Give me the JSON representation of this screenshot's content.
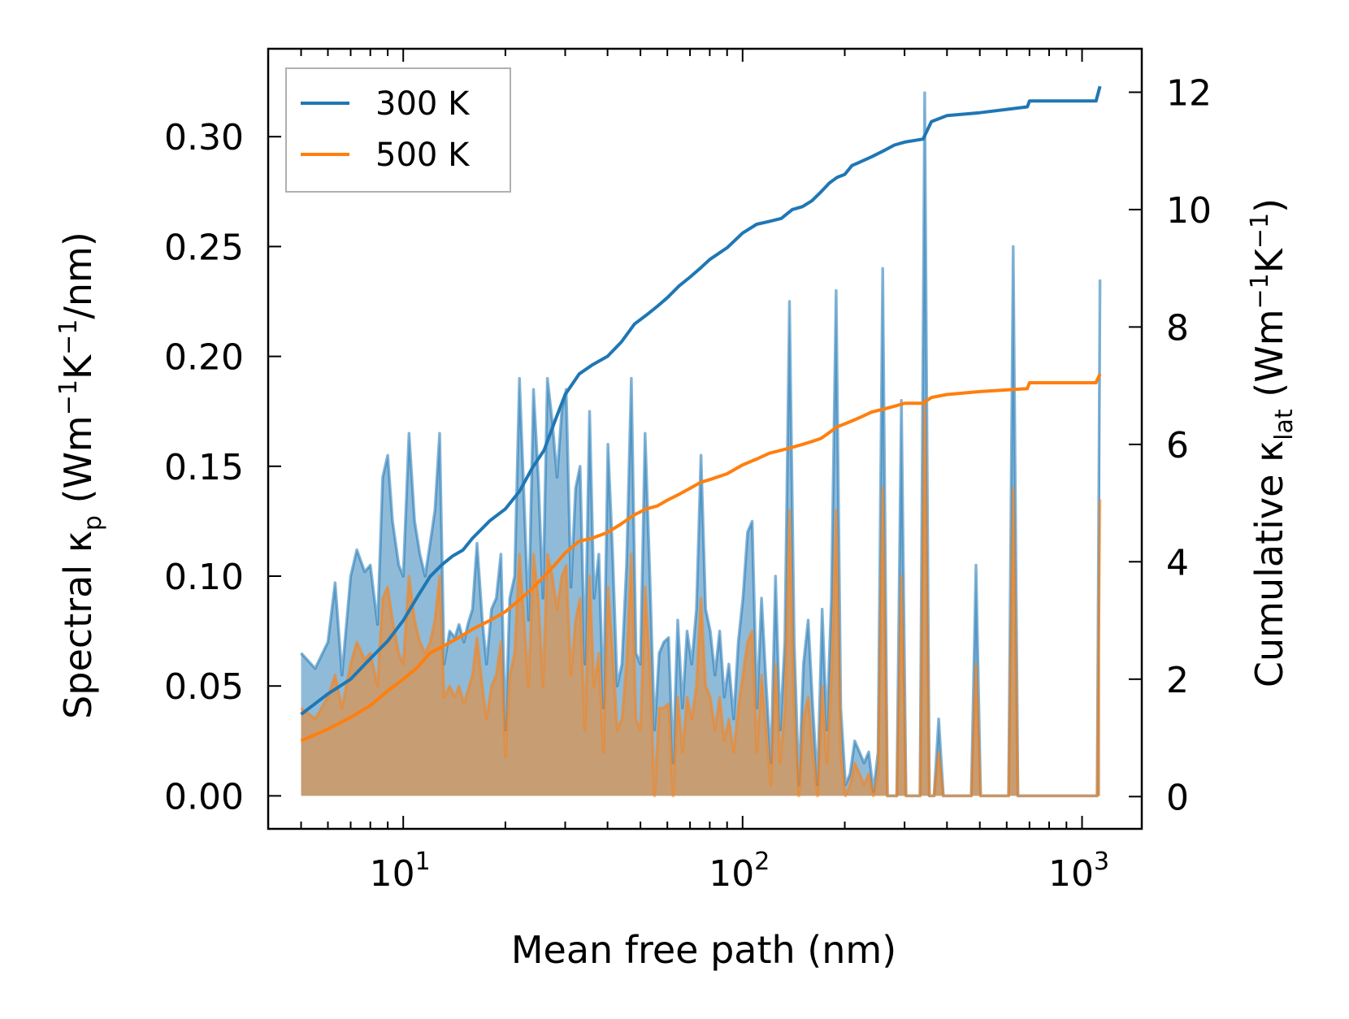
{
  "chart_data": {
    "type": "line",
    "x_scale": "log",
    "xlabel": "Mean free path (nm)",
    "ylabel_left": {
      "main": "Spectral κ",
      "sub": "p",
      "unit_pre": " (Wm",
      "sup1": "−1",
      "unit_mid": "K",
      "sup2": "−1",
      "unit_post": "/nm)"
    },
    "ylabel_right": {
      "main": "Cumulative κ",
      "sub": "lat",
      "unit_pre": " (Wm",
      "sup1": "−1",
      "unit_mid": "K",
      "sup2": "−1",
      "unit_post": ")"
    },
    "xlim": [
      4.0,
      1500.0
    ],
    "ylim_left": [
      -0.015,
      0.34
    ],
    "ylim_right": [
      -0.55,
      12.74
    ],
    "x_ticks": [
      {
        "value": 10,
        "base": "10",
        "exp": "1"
      },
      {
        "value": 100,
        "base": "10",
        "exp": "2"
      },
      {
        "value": 1000,
        "base": "10",
        "exp": "3"
      }
    ],
    "y_ticks_left": [
      "0.00",
      "0.05",
      "0.10",
      "0.15",
      "0.20",
      "0.25",
      "0.30"
    ],
    "y_ticks_right": [
      "0",
      "2",
      "4",
      "6",
      "8",
      "10",
      "12"
    ],
    "legend": {
      "position": "top-left",
      "entries": [
        {
          "label": "300 K",
          "color": "#1f77b4"
        },
        {
          "label": "500 K",
          "color": "#ff7f0e"
        }
      ]
    },
    "series": [
      {
        "name": "300 K",
        "color": "#1f77b4",
        "spectral": {
          "x": [
            5.0,
            5.5,
            6.0,
            6.3,
            6.6,
            7.0,
            7.3,
            7.7,
            8.0,
            8.4,
            8.7,
            9.0,
            9.3,
            9.7,
            10.0,
            10.4,
            10.8,
            11.2,
            11.6,
            12.0,
            12.4,
            12.8,
            13.2,
            13.7,
            14.2,
            14.6,
            15.1,
            15.5,
            16.0,
            16.5,
            17.1,
            17.6,
            18.2,
            18.8,
            19.4,
            20.0,
            20.6,
            21.3,
            22.0,
            22.7,
            23.4,
            24.2,
            25.0,
            25.8,
            26.6,
            27.5,
            28.4,
            29.3,
            30.2,
            31.2,
            32.2,
            33.2,
            34.3,
            35.4,
            36.5,
            37.7,
            38.9,
            40.1,
            41.4,
            42.7,
            44.1,
            45.5,
            47.0,
            48.5,
            50.0,
            51.6,
            53.3,
            55.0,
            56.8,
            58.6,
            60.5,
            62.4,
            64.4,
            66.5,
            68.6,
            70.8,
            73.1,
            75.4,
            77.8,
            80.3,
            82.9,
            85.6,
            88.3,
            91.1,
            94.1,
            97.1,
            100.2,
            103.4,
            106.7,
            110.2,
            113.7,
            117.4,
            121.2,
            125.0,
            129.0,
            133.2,
            137.4,
            141.9,
            146.4,
            151.1,
            156.0,
            161.0,
            166.2,
            171.5,
            177.0,
            182.7,
            188.6,
            194.6,
            200.9,
            207.3,
            214.0,
            220.9,
            228.0,
            235.3,
            242.9,
            250.7,
            258.7,
            267.0,
            275.6,
            284.5,
            293.6,
            303.0,
            312.8,
            322.8,
            333.2,
            343.9,
            355.0,
            366.4,
            378.2,
            390.3,
            402.8,
            415.8,
            429.1,
            442.9,
            457.2,
            471.9,
            487.0,
            502.7,
            518.8,
            535.5,
            552.7,
            570.5,
            588.8,
            607.7,
            627.2,
            647.4,
            668.2,
            689.6,
            711.8,
            734.6,
            758.2,
            782.6,
            807.7,
            833.7,
            860.5,
            888.1,
            916.7,
            946.1,
            976.5,
            1007.9,
            1040.3,
            1073.7,
            1108.2,
            1130.0
          ],
          "y": [
            0.065,
            0.058,
            0.07,
            0.097,
            0.055,
            0.1,
            0.112,
            0.102,
            0.105,
            0.078,
            0.145,
            0.155,
            0.125,
            0.105,
            0.1,
            0.165,
            0.125,
            0.11,
            0.1,
            0.115,
            0.13,
            0.165,
            0.06,
            0.075,
            0.072,
            0.078,
            0.07,
            0.078,
            0.085,
            0.115,
            0.08,
            0.06,
            0.085,
            0.09,
            0.11,
            0.03,
            0.09,
            0.1,
            0.19,
            0.135,
            0.08,
            0.185,
            0.145,
            0.09,
            0.19,
            0.17,
            0.145,
            0.175,
            0.185,
            0.095,
            0.14,
            0.15,
            0.06,
            0.175,
            0.09,
            0.11,
            0.04,
            0.16,
            0.11,
            0.05,
            0.06,
            0.105,
            0.19,
            0.065,
            0.06,
            0.165,
            0.1,
            0.03,
            0.065,
            0.07,
            0.072,
            0.015,
            0.08,
            0.04,
            0.075,
            0.06,
            0.085,
            0.155,
            0.085,
            0.075,
            0.055,
            0.075,
            0.045,
            0.06,
            0.035,
            0.07,
            0.09,
            0.12,
            0.125,
            0.04,
            0.09,
            0.05,
            0.015,
            0.1,
            0.03,
            0.07,
            0.225,
            0.07,
            0.005,
            0.06,
            0.08,
            0.04,
            0.005,
            0.085,
            0.03,
            0.09,
            0.23,
            0.04,
            0.005,
            0.01,
            0.025,
            0.02,
            0.015,
            0.02,
            0.002,
            0.02,
            0.24,
            0.0,
            0.0,
            0.0,
            0.18,
            0.0,
            0.0,
            0.0,
            0.0,
            0.32,
            0.0,
            0.0,
            0.035,
            0.0,
            0.0,
            0.0,
            0.0,
            0.0,
            0.0,
            0.0,
            0.105,
            0.0,
            0.0,
            0.0,
            0.0,
            0.0,
            0.0,
            0.0,
            0.25,
            0.0,
            0.0,
            0.0,
            0.0,
            0.0,
            0.0,
            0.0,
            0.0,
            0.0,
            0.0,
            0.0,
            0.0,
            0.0,
            0.0,
            0.0,
            0.0,
            0.0,
            0.0,
            0.235
          ]
        },
        "cumulative": {
          "x": [
            5.0,
            6.0,
            7.0,
            8.0,
            9.0,
            10.0,
            11.0,
            12.0,
            13.0,
            14.0,
            15.0,
            16.0,
            18.0,
            20.0,
            22.0,
            24.0,
            26.0,
            28.0,
            30.0,
            33.0,
            36.0,
            40.0,
            44.0,
            48.0,
            52.0,
            56.0,
            60.0,
            65.0,
            70.0,
            75.0,
            80.0,
            90.0,
            100.0,
            110.0,
            120.0,
            130.0,
            140.0,
            150.0,
            160.0,
            170.0,
            180.0,
            190.0,
            200.0,
            210.0,
            220.0,
            240.0,
            260.0,
            280.0,
            300.0,
            340.0,
            360.0,
            400.0,
            500.0,
            690.0,
            700.0,
            1100.0,
            1130.0
          ],
          "y": [
            1.4,
            1.75,
            2.0,
            2.35,
            2.65,
            3.0,
            3.4,
            3.75,
            3.95,
            4.1,
            4.2,
            4.4,
            4.7,
            4.9,
            5.2,
            5.6,
            5.9,
            6.4,
            6.85,
            7.2,
            7.35,
            7.5,
            7.75,
            8.05,
            8.2,
            8.35,
            8.5,
            8.7,
            8.85,
            9.0,
            9.15,
            9.35,
            9.6,
            9.75,
            9.8,
            9.85,
            10.0,
            10.05,
            10.15,
            10.3,
            10.45,
            10.55,
            10.6,
            10.75,
            10.8,
            10.9,
            11.0,
            11.1,
            11.15,
            11.2,
            11.5,
            11.6,
            11.65,
            11.75,
            11.85,
            11.85,
            12.1
          ]
        }
      },
      {
        "name": "500 K",
        "color": "#ff7f0e",
        "spectral": {
          "x": [
            5.0,
            5.5,
            6.0,
            6.3,
            6.6,
            7.0,
            7.3,
            7.7,
            8.0,
            8.4,
            8.7,
            9.0,
            9.3,
            9.7,
            10.0,
            10.4,
            10.8,
            11.2,
            11.6,
            12.0,
            12.4,
            12.8,
            13.2,
            13.7,
            14.2,
            14.6,
            15.1,
            15.5,
            16.0,
            16.5,
            17.1,
            17.6,
            18.2,
            18.8,
            19.4,
            20.0,
            20.6,
            21.3,
            22.0,
            22.7,
            23.4,
            24.2,
            25.0,
            25.8,
            26.6,
            27.5,
            28.4,
            29.3,
            30.2,
            31.2,
            32.2,
            33.2,
            34.3,
            35.4,
            36.5,
            37.7,
            38.9,
            40.1,
            41.4,
            42.7,
            44.1,
            45.5,
            47.0,
            48.5,
            50.0,
            51.6,
            53.3,
            55.0,
            56.8,
            58.6,
            60.5,
            62.4,
            64.4,
            66.5,
            68.6,
            70.8,
            73.1,
            75.4,
            77.8,
            80.3,
            82.9,
            85.6,
            88.3,
            91.1,
            94.1,
            97.1,
            100.2,
            103.4,
            106.7,
            110.2,
            113.7,
            117.4,
            121.2,
            125.0,
            129.0,
            133.2,
            137.4,
            141.9,
            146.4,
            151.1,
            156.0,
            161.0,
            166.2,
            171.5,
            177.0,
            182.7,
            188.6,
            194.6,
            200.9,
            207.3,
            214.0,
            220.9,
            228.0,
            235.3,
            242.9,
            250.7,
            258.7,
            267.0,
            275.6,
            284.5,
            293.6,
            303.0,
            312.8,
            322.8,
            333.2,
            343.9,
            355.0,
            366.4,
            378.2,
            390.3,
            402.8,
            415.8,
            429.1,
            442.9,
            457.2,
            471.9,
            487.0,
            502.7,
            518.8,
            535.5,
            552.7,
            570.5,
            588.8,
            607.7,
            627.2,
            647.4,
            668.2,
            689.6,
            711.8,
            734.6,
            758.2,
            782.6,
            807.7,
            833.7,
            860.5,
            888.1,
            916.7,
            946.1,
            976.5,
            1007.9,
            1040.3,
            1073.7,
            1108.2,
            1130.0
          ],
          "y": [
            0.04,
            0.035,
            0.045,
            0.055,
            0.04,
            0.06,
            0.07,
            0.062,
            0.065,
            0.05,
            0.09,
            0.095,
            0.08,
            0.065,
            0.06,
            0.1,
            0.08,
            0.07,
            0.065,
            0.07,
            0.08,
            0.1,
            0.045,
            0.05,
            0.045,
            0.05,
            0.042,
            0.048,
            0.055,
            0.072,
            0.05,
            0.035,
            0.05,
            0.055,
            0.07,
            0.018,
            0.055,
            0.065,
            0.11,
            0.08,
            0.05,
            0.11,
            0.09,
            0.05,
            0.11,
            0.1,
            0.085,
            0.1,
            0.105,
            0.055,
            0.08,
            0.09,
            0.03,
            0.1,
            0.05,
            0.065,
            0.02,
            0.095,
            0.065,
            0.03,
            0.035,
            0.06,
            0.11,
            0.035,
            0.03,
            0.095,
            0.06,
            0.0,
            0.04,
            0.04,
            0.042,
            0.0,
            0.045,
            0.02,
            0.045,
            0.035,
            0.05,
            0.09,
            0.05,
            0.045,
            0.03,
            0.045,
            0.025,
            0.035,
            0.02,
            0.04,
            0.055,
            0.07,
            0.075,
            0.02,
            0.055,
            0.03,
            0.005,
            0.06,
            0.015,
            0.04,
            0.13,
            0.04,
            0.0,
            0.035,
            0.045,
            0.02,
            0.0,
            0.05,
            0.015,
            0.055,
            0.13,
            0.02,
            0.0,
            0.005,
            0.015,
            0.01,
            0.005,
            0.01,
            0.0,
            0.01,
            0.14,
            0.0,
            0.0,
            0.0,
            0.1,
            0.0,
            0.0,
            0.0,
            0.0,
            0.18,
            0.0,
            0.0,
            0.02,
            0.0,
            0.0,
            0.0,
            0.0,
            0.0,
            0.0,
            0.0,
            0.06,
            0.0,
            0.0,
            0.0,
            0.0,
            0.0,
            0.0,
            0.0,
            0.14,
            0.0,
            0.0,
            0.0,
            0.0,
            0.0,
            0.0,
            0.0,
            0.0,
            0.0,
            0.0,
            0.0,
            0.0,
            0.0,
            0.0,
            0.0,
            0.0,
            0.0,
            0.0,
            0.135
          ]
        },
        "cumulative": {
          "x": [
            5.0,
            6.0,
            7.0,
            8.0,
            9.0,
            10.0,
            11.0,
            12.0,
            13.0,
            14.0,
            15.0,
            16.0,
            18.0,
            20.0,
            22.0,
            24.0,
            26.0,
            28.0,
            30.0,
            33.0,
            36.0,
            40.0,
            44.0,
            48.0,
            52.0,
            56.0,
            60.0,
            65.0,
            70.0,
            75.0,
            80.0,
            90.0,
            100.0,
            110.0,
            120.0,
            130.0,
            140.0,
            150.0,
            160.0,
            170.0,
            180.0,
            190.0,
            200.0,
            210.0,
            220.0,
            240.0,
            260.0,
            280.0,
            300.0,
            340.0,
            360.0,
            400.0,
            500.0,
            690.0,
            700.0,
            1100.0,
            1130.0
          ],
          "y": [
            0.95,
            1.15,
            1.35,
            1.55,
            1.8,
            2.0,
            2.2,
            2.45,
            2.55,
            2.65,
            2.75,
            2.85,
            3.0,
            3.15,
            3.35,
            3.55,
            3.75,
            3.95,
            4.15,
            4.35,
            4.4,
            4.5,
            4.65,
            4.8,
            4.9,
            4.95,
            5.05,
            5.15,
            5.25,
            5.35,
            5.4,
            5.5,
            5.65,
            5.75,
            5.85,
            5.9,
            5.95,
            6.0,
            6.05,
            6.1,
            6.2,
            6.3,
            6.35,
            6.4,
            6.45,
            6.55,
            6.6,
            6.65,
            6.7,
            6.7,
            6.8,
            6.85,
            6.9,
            6.95,
            7.05,
            7.05,
            7.2
          ]
        }
      }
    ]
  }
}
